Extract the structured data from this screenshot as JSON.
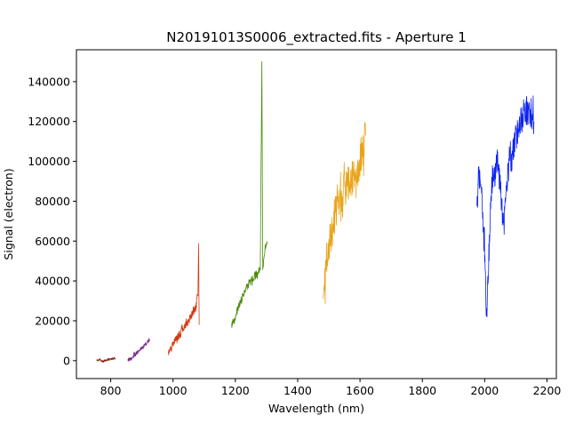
{
  "chart_data": {
    "type": "line",
    "title": "N20191013S0006_extracted.fits - Aperture 1",
    "xlabel": "Wavelength (nm)",
    "ylabel": "Signal (electron)",
    "xlim": [
      690,
      2230
    ],
    "ylim": [
      -9000,
      156000
    ],
    "xticks": [
      800,
      1000,
      1200,
      1400,
      1600,
      1800,
      2000,
      2200
    ],
    "yticks": [
      0,
      20000,
      40000,
      60000,
      80000,
      100000,
      120000,
      140000
    ],
    "grid": false,
    "legend": "none",
    "series": [
      {
        "color": "#8b1a0a",
        "points": [
          [
            755,
            200
          ],
          [
            765,
            600
          ],
          [
            775,
            -400
          ],
          [
            785,
            300
          ],
          [
            795,
            700
          ],
          [
            805,
            900
          ],
          [
            815,
            1400
          ]
        ],
        "noise": 500
      },
      {
        "color": "#7b2a8e",
        "points": [
          [
            855,
            300
          ],
          [
            865,
            1000
          ],
          [
            875,
            2600
          ],
          [
            885,
            4000
          ],
          [
            895,
            5200
          ],
          [
            905,
            7000
          ],
          [
            915,
            8800
          ],
          [
            925,
            10500
          ]
        ],
        "noise": 1000
      },
      {
        "color": "#d43a10",
        "points": [
          [
            985,
            4500
          ],
          [
            995,
            6500
          ],
          [
            1005,
            9500
          ],
          [
            1015,
            11500
          ],
          [
            1025,
            14000
          ],
          [
            1035,
            16000
          ],
          [
            1045,
            19000
          ],
          [
            1055,
            21500
          ],
          [
            1065,
            24500
          ],
          [
            1075,
            28000
          ],
          [
            1080,
            33000
          ],
          [
            1082,
            58000
          ],
          [
            1084,
            18000
          ]
        ],
        "noise": 2000
      },
      {
        "color": "#4e8a0c",
        "points": [
          [
            1188,
            17000
          ],
          [
            1200,
            22000
          ],
          [
            1210,
            27000
          ],
          [
            1220,
            31000
          ],
          [
            1230,
            35000
          ],
          [
            1240,
            38000
          ],
          [
            1250,
            40000
          ],
          [
            1260,
            42000
          ],
          [
            1270,
            44000
          ],
          [
            1280,
            47000
          ],
          [
            1285,
            149000
          ],
          [
            1288,
            46000
          ],
          [
            1295,
            56000
          ],
          [
            1302,
            60000
          ]
        ],
        "noise": 2000
      },
      {
        "color": "#e8a419",
        "points": [
          [
            1482,
            31000
          ],
          [
            1490,
            48000
          ],
          [
            1500,
            57000
          ],
          [
            1510,
            65000
          ],
          [
            1520,
            73000
          ],
          [
            1530,
            79000
          ],
          [
            1540,
            82000
          ],
          [
            1550,
            86000
          ],
          [
            1560,
            88000
          ],
          [
            1570,
            90000
          ],
          [
            1580,
            92000
          ],
          [
            1590,
            95000
          ],
          [
            1600,
            100000
          ],
          [
            1610,
            106000
          ],
          [
            1618,
            113000
          ]
        ],
        "noise": 9000
      },
      {
        "color": "#0d22f2",
        "points": [
          [
            1975,
            78000
          ],
          [
            1980,
            96000
          ],
          [
            1985,
            92000
          ],
          [
            1990,
            82000
          ],
          [
            1995,
            70000
          ],
          [
            2000,
            52000
          ],
          [
            2005,
            26000
          ],
          [
            2010,
            38000
          ],
          [
            2015,
            60000
          ],
          [
            2020,
            80000
          ],
          [
            2025,
            92000
          ],
          [
            2030,
            88000
          ],
          [
            2035,
            97000
          ],
          [
            2040,
            102000
          ],
          [
            2045,
            95000
          ],
          [
            2050,
            88000
          ],
          [
            2055,
            78000
          ],
          [
            2060,
            68000
          ],
          [
            2065,
            72000
          ],
          [
            2070,
            88000
          ],
          [
            2075,
            100000
          ],
          [
            2080,
            103000
          ],
          [
            2085,
            96000
          ],
          [
            2090,
            104000
          ],
          [
            2095,
            108000
          ],
          [
            2100,
            112000
          ],
          [
            2110,
            118000
          ],
          [
            2120,
            123000
          ],
          [
            2130,
            126000
          ],
          [
            2140,
            124000
          ],
          [
            2150,
            122000
          ],
          [
            2158,
            120000
          ]
        ],
        "noise": 7000
      }
    ]
  }
}
